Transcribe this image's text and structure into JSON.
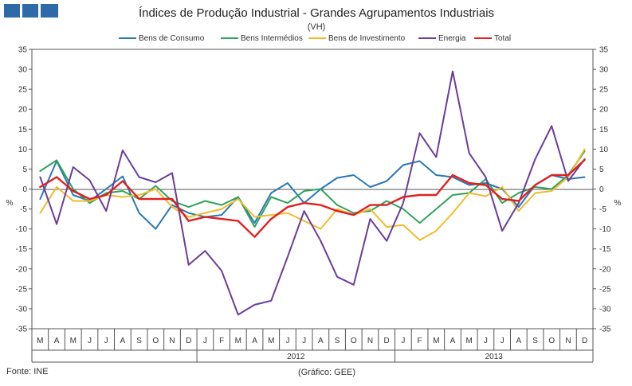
{
  "logo": {
    "name": "ine-logo-blocks",
    "color": "#2e6aa8"
  },
  "chart_data": {
    "type": "line",
    "title": "Índices de Produção Industrial - Grandes Agrupamentos  Industriais",
    "subtitle": "(VH)",
    "ylabel_left": "%",
    "ylabel_right": "%",
    "ylim": [
      -35,
      35
    ],
    "yticks": [
      -35,
      -30,
      -25,
      -20,
      -15,
      -10,
      -5,
      0,
      5,
      10,
      15,
      20,
      25,
      30,
      35
    ],
    "grid": false,
    "legend_position": "top",
    "categories": [
      "M",
      "A",
      "M",
      "J",
      "J",
      "A",
      "S",
      "O",
      "N",
      "D",
      "J",
      "F",
      "M",
      "A",
      "M",
      "J",
      "J",
      "A",
      "S",
      "O",
      "N",
      "D",
      "J",
      "F",
      "M",
      "A",
      "M",
      "J",
      "J",
      "A",
      "S",
      "O",
      "N",
      "D"
    ],
    "year_labels": [
      {
        "label": "2012",
        "start": 10,
        "end": 21
      },
      {
        "label": "2013",
        "start": 22,
        "end": 33
      }
    ],
    "series": [
      {
        "name": "Bens de Consumo",
        "color": "#2a78b8",
        "values": [
          -2.5,
          7.0,
          -1.5,
          -3.0,
          0.0,
          3.2,
          -6.0,
          -10.0,
          -4.0,
          -6.0,
          -7.0,
          -6.5,
          -2.0,
          -8.5,
          -1.0,
          1.5,
          -3.5,
          0.0,
          2.8,
          3.5,
          0.5,
          2.0,
          6.0,
          7.0,
          3.5,
          3.0,
          1.0,
          1.5,
          0.0,
          -4.5,
          1.0,
          3.5,
          2.5,
          3.0
        ]
      },
      {
        "name": "Bens Intermédios",
        "color": "#2fa35b",
        "values": [
          4.5,
          7.2,
          0.0,
          -3.5,
          -1.0,
          -0.5,
          -2.5,
          0.8,
          -3.0,
          -4.5,
          -3.0,
          -4.0,
          -2.0,
          -9.5,
          -2.0,
          -3.5,
          -0.5,
          0.0,
          -4.0,
          -6.0,
          -5.5,
          -3.0,
          -5.0,
          -8.5,
          -5.0,
          -1.5,
          -1.0,
          2.5,
          -3.5,
          -1.0,
          0.5,
          0.0,
          3.5,
          9.5
        ]
      },
      {
        "name": "Bens de Investimento",
        "color": "#f0bc2b",
        "values": [
          -6.0,
          0.5,
          -3.0,
          -3.0,
          -1.5,
          -2.0,
          -1.5,
          0.0,
          -4.5,
          -7.0,
          -6.0,
          -5.0,
          -2.5,
          -7.0,
          -6.5,
          -6.0,
          -8.0,
          -10.0,
          -5.0,
          -6.5,
          -5.0,
          -9.5,
          -9.0,
          -12.8,
          -10.5,
          -6.0,
          -1.0,
          -1.8,
          0.5,
          -5.5,
          -1.0,
          -0.5,
          3.0,
          10.0
        ]
      },
      {
        "name": "Energia",
        "color": "#6a3d9a",
        "values": [
          3.0,
          -8.8,
          5.5,
          2.2,
          -5.5,
          9.7,
          3.0,
          1.7,
          4.0,
          -19.0,
          -15.5,
          -20.5,
          -31.5,
          -29.0,
          -28.0,
          -17.0,
          -5.5,
          -13.0,
          -22.0,
          -24.0,
          -7.5,
          -13.0,
          -3.5,
          14.0,
          8.0,
          29.5,
          9.0,
          3.0,
          -10.5,
          -3.5,
          7.5,
          15.8,
          2.0,
          7.5
        ]
      },
      {
        "name": "Total",
        "color": "#e02020",
        "values": [
          0.5,
          3.0,
          -0.5,
          -2.5,
          -1.5,
          2.0,
          -2.5,
          -2.5,
          -2.5,
          -8.0,
          -7.0,
          -7.5,
          -8.0,
          -12.0,
          -7.5,
          -4.5,
          -3.5,
          -4.0,
          -5.5,
          -6.5,
          -4.0,
          -4.0,
          -2.0,
          -1.5,
          -1.5,
          3.5,
          1.5,
          1.0,
          -2.5,
          -3.0,
          1.0,
          3.5,
          3.5,
          7.3
        ]
      }
    ]
  },
  "footer": {
    "source": "Fonte: INE",
    "credit": "(Gráfico: GEE)"
  }
}
